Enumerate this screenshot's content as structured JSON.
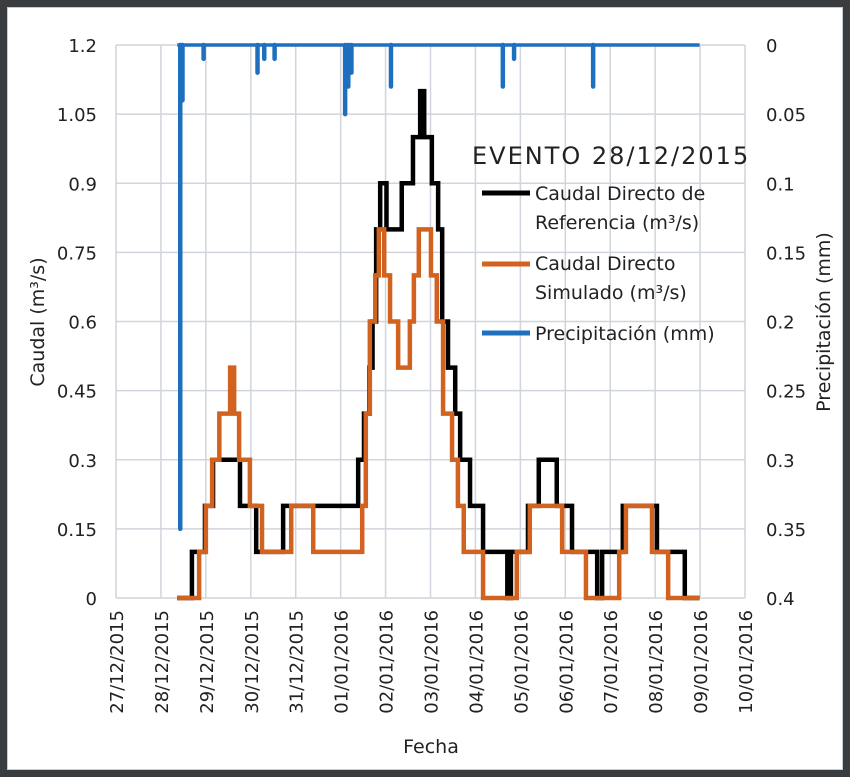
{
  "chart_data": {
    "type": "line",
    "title": "EVENTO 28/12/2015",
    "xlabel": "Fecha",
    "ylabel": "Caudal (m³/s)",
    "y2label": "Precipitación (mm)",
    "ylim": [
      0,
      1.2
    ],
    "y2lim": [
      0.4,
      0
    ],
    "y2_inverted": true,
    "grid": true,
    "legend_position": "upper right (inside plot)",
    "x_tick_labels": [
      "27/12/2015",
      "28/12/2015",
      "29/12/2015",
      "30/12/2015",
      "31/12/2015",
      "01/01/2016",
      "02/01/2016",
      "03/01/2016",
      "04/01/2016",
      "05/01/2016",
      "06/01/2016",
      "07/01/2016",
      "08/01/2016",
      "09/01/2016",
      "10/01/2016"
    ],
    "y_tick_labels": [
      "0",
      "0.15",
      "0.3",
      "0.45",
      "0.6",
      "0.75",
      "0.9",
      "1.05",
      "1.2"
    ],
    "y2_tick_labels": [
      "0",
      "0.05",
      "0.1",
      "0.15",
      "0.2",
      "0.25",
      "0.3",
      "0.35",
      "0.4"
    ],
    "x_unit": "days since 27/12/2015 00:00",
    "series": [
      {
        "name": "Caudal Directo de Referencia (m³/s)",
        "color": "#000000",
        "step": true,
        "x": [
          1.36,
          1.69,
          1.98,
          2.16,
          2.76,
          3.12,
          3.72,
          5.39,
          5.52,
          5.64,
          5.71,
          5.79,
          5.88,
          6.02,
          6.2,
          6.36,
          6.61,
          6.77,
          6.86,
          7.03,
          7.17,
          7.26,
          7.39,
          7.55,
          7.66,
          7.88,
          8.17,
          8.71,
          8.79,
          9.17,
          9.41,
          9.81,
          10.15,
          10.71,
          10.82,
          11.28,
          12.04,
          12.66,
          12.99
        ],
        "values": [
          0,
          0.1,
          0.2,
          0.3,
          0.2,
          0.1,
          0.2,
          0.3,
          0.4,
          0.5,
          0.6,
          0.8,
          0.9,
          0.8,
          0.8,
          0.9,
          1.0,
          1.1,
          1.0,
          0.9,
          0.8,
          0.6,
          0.5,
          0.4,
          0.3,
          0.2,
          0.1,
          0,
          0.1,
          0.2,
          0.3,
          0.2,
          0.1,
          0,
          0.1,
          0.2,
          0.1,
          0,
          0
        ]
      },
      {
        "name": "Caudal Directo Simulado (m³/s)",
        "color": "#d2621f",
        "step": true,
        "x": [
          1.36,
          1.85,
          2.0,
          2.14,
          2.3,
          2.54,
          2.63,
          2.74,
          2.98,
          3.25,
          3.9,
          4.39,
          5.48,
          5.56,
          5.65,
          5.77,
          5.85,
          5.97,
          6.1,
          6.28,
          6.54,
          6.63,
          6.74,
          7.01,
          7.14,
          7.28,
          7.48,
          7.61,
          7.74,
          8.17,
          8.92,
          9.21,
          9.93,
          10.46,
          11.2,
          11.35,
          11.93,
          12.29,
          12.99
        ],
        "values": [
          0,
          0.1,
          0.2,
          0.3,
          0.4,
          0.5,
          0.4,
          0.3,
          0.2,
          0.1,
          0.2,
          0.1,
          0.2,
          0.4,
          0.6,
          0.7,
          0.8,
          0.7,
          0.6,
          0.5,
          0.6,
          0.7,
          0.8,
          0.7,
          0.6,
          0.4,
          0.3,
          0.2,
          0.1,
          0,
          0.1,
          0.2,
          0.1,
          0,
          0.1,
          0.2,
          0.1,
          0,
          0
        ]
      },
      {
        "name": "Precipitación (mm)",
        "color": "#1f6fbf",
        "type": "bar-from-top",
        "x": [
          1.43,
          1.48,
          1.95,
          3.15,
          3.3,
          3.53,
          5.1,
          5.17,
          5.24,
          6.12,
          8.61,
          8.86,
          10.62
        ],
        "values": [
          0.35,
          0.04,
          0.01,
          0.02,
          0.01,
          0.01,
          0.05,
          0.03,
          0.02,
          0.03,
          0.03,
          0.01,
          0.03
        ]
      }
    ]
  },
  "legend": {
    "title": "EVENTO 28/12/2015",
    "items": [
      {
        "line1": "Caudal Directo de",
        "line2": "Referencia (m³/s)",
        "color": "#000000"
      },
      {
        "line1": "Caudal Directo",
        "line2": "Simulado (m³/s)",
        "color": "#d2621f"
      },
      {
        "line1": "Precipitación (mm)",
        "line2": "",
        "color": "#1f6fbf"
      }
    ]
  },
  "colors": {
    "grid": "#d0d4dc",
    "frame": "#3a3d3f"
  }
}
